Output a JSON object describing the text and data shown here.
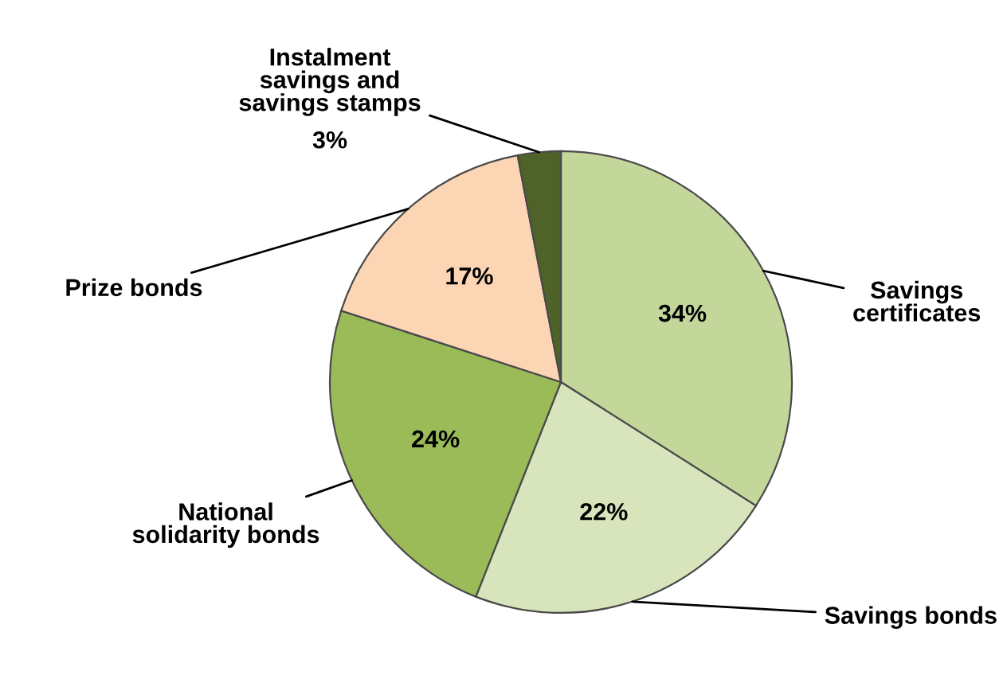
{
  "chart_data": {
    "type": "pie",
    "categories": [
      "Savings\ncertificates",
      "Savings bonds",
      "National\nsolidarity bonds",
      "Prize bonds",
      "Instalment\nsavings and\nsavings stamps"
    ],
    "values": [
      34,
      22,
      24,
      17,
      3
    ],
    "value_labels": [
      "34%",
      "22%",
      "24%",
      "17%",
      "3%"
    ],
    "colors": [
      "#c4d79b",
      "#d8e4bc",
      "#9bbb59",
      "#fcd5b4",
      "#4f6228"
    ],
    "legend": false
  }
}
